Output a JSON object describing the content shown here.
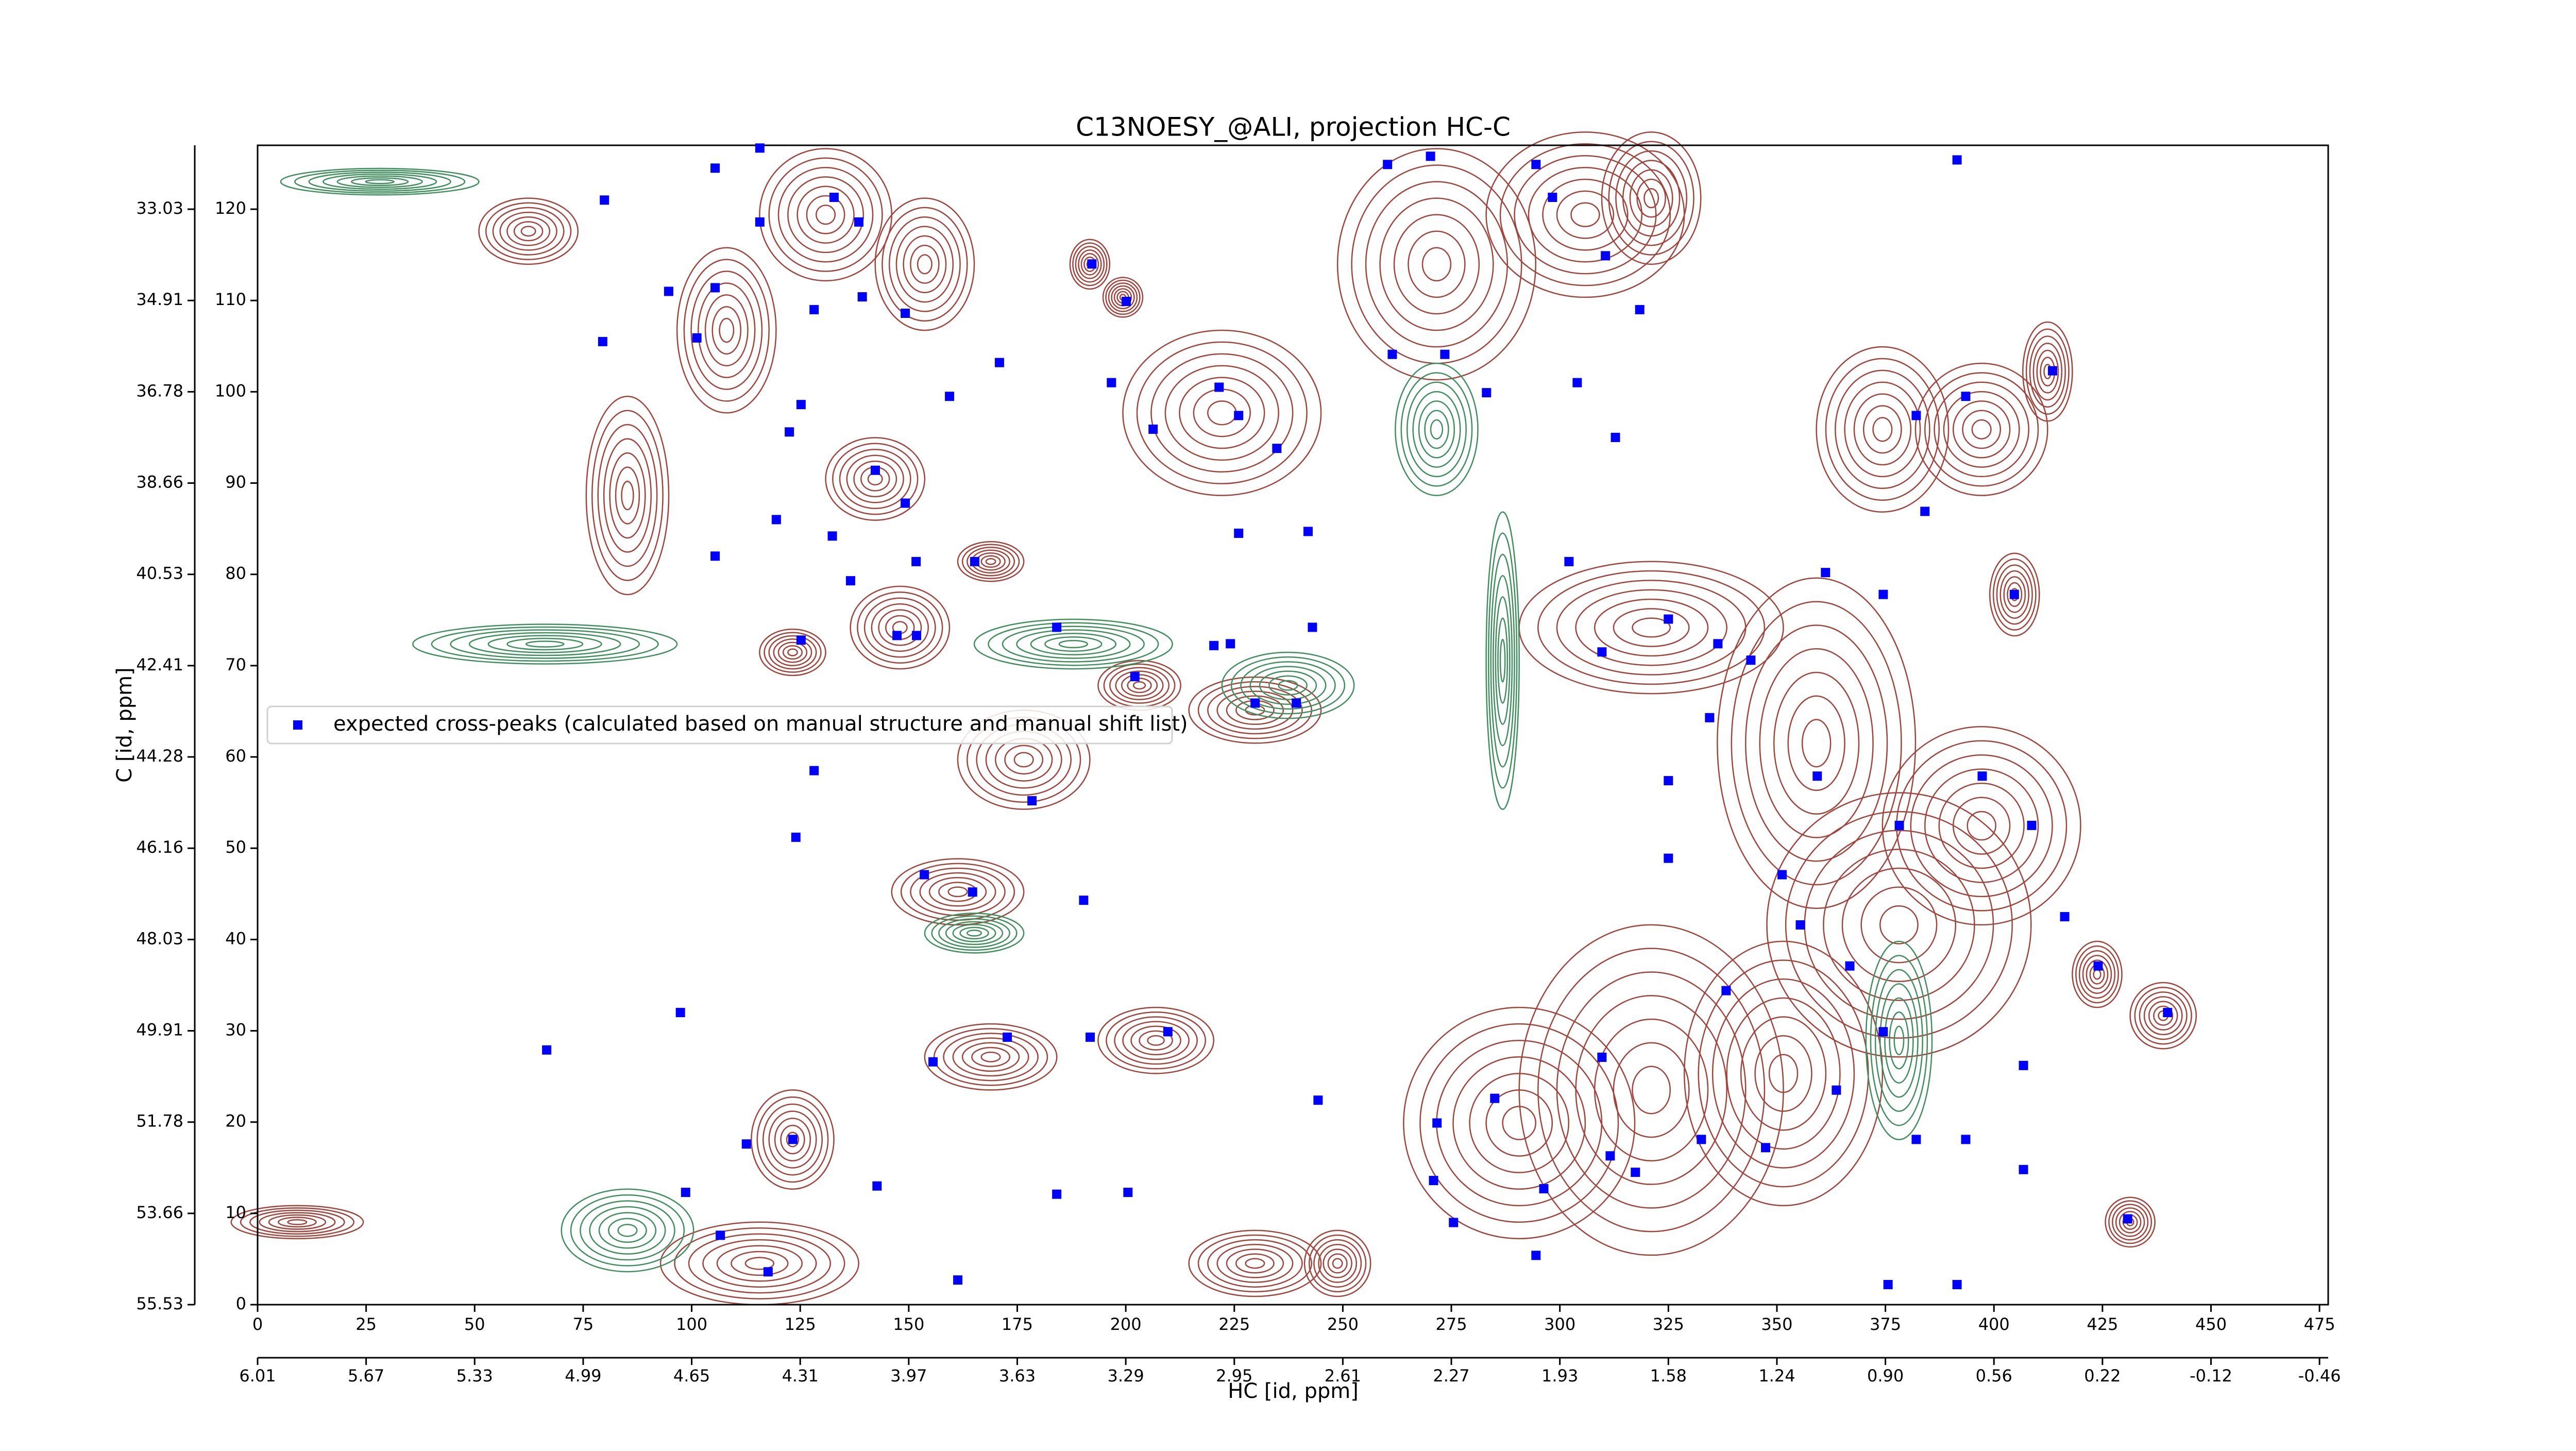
{
  "chart_data": {
    "type": "scatter",
    "title": "C13NOESY_@ALI, projection HC-C",
    "xlabel": "HC [id, ppm]",
    "ylabel": "C [id, ppm]",
    "xlim": [
      0,
      477
    ],
    "ylim": [
      0,
      127
    ],
    "xticks": [
      0,
      25,
      50,
      75,
      100,
      125,
      150,
      175,
      200,
      225,
      250,
      275,
      300,
      325,
      350,
      375,
      400,
      425,
      450,
      475
    ],
    "yticks": [
      0,
      10,
      20,
      30,
      40,
      50,
      60,
      70,
      80,
      90,
      100,
      110,
      120
    ],
    "x2ticks": [
      {
        "value": 0,
        "label": "6.01"
      },
      {
        "value": 25,
        "label": "5.67"
      },
      {
        "value": 50,
        "label": "5.33"
      },
      {
        "value": 75,
        "label": "4.99"
      },
      {
        "value": 100,
        "label": "4.65"
      },
      {
        "value": 125,
        "label": "4.31"
      },
      {
        "value": 150,
        "label": "3.97"
      },
      {
        "value": 175,
        "label": "3.63"
      },
      {
        "value": 200,
        "label": "3.29"
      },
      {
        "value": 225,
        "label": "2.95"
      },
      {
        "value": 250,
        "label": "2.61"
      },
      {
        "value": 275,
        "label": "2.27"
      },
      {
        "value": 300,
        "label": "1.93"
      },
      {
        "value": 325,
        "label": "1.58"
      },
      {
        "value": 350,
        "label": "1.24"
      },
      {
        "value": 375,
        "label": "0.90"
      },
      {
        "value": 400,
        "label": "0.56"
      },
      {
        "value": 425,
        "label": "0.22"
      },
      {
        "value": 450,
        "label": "-0.12"
      },
      {
        "value": 475,
        "label": "-0.46"
      }
    ],
    "y2ticks": [
      {
        "value": 0,
        "label": "55.53"
      },
      {
        "value": 10,
        "label": "53.66"
      },
      {
        "value": 20,
        "label": "51.78"
      },
      {
        "value": 30,
        "label": "49.91"
      },
      {
        "value": 40,
        "label": "48.03"
      },
      {
        "value": 50,
        "label": "46.16"
      },
      {
        "value": 60,
        "label": "44.28"
      },
      {
        "value": 70,
        "label": "42.41"
      },
      {
        "value": 80,
        "label": "40.53"
      },
      {
        "value": 90,
        "label": "38.66"
      },
      {
        "value": 100,
        "label": "36.78"
      },
      {
        "value": 110,
        "label": "34.91"
      },
      {
        "value": 120,
        "label": "33.03"
      }
    ],
    "legend": "center left",
    "series": [
      {
        "name": "expected cross-peaks (calculated based on manual structure and manual shift list)",
        "color": "#0000ff",
        "x": [
          79.9,
          115.7,
          105.4,
          115.7,
          132.8,
          138.5,
          94.7,
          105.4,
          101.2,
          128.2,
          139.3,
          149.2,
          192.2,
          200.1,
          170.9,
          125.2,
          122.5,
          119.5,
          142.3,
          149.2,
          159.4,
          196.7,
          206.3,
          221.5,
          226.0,
          234.8,
          226.0,
          242.0,
          132.4,
          136.6,
          151.7,
          165.2,
          125.2,
          147.3,
          151.8,
          184.1,
          220.3,
          224.1,
          243.0,
          202.1,
          229.8,
          239.3,
          124.0,
          128.2,
          153.6,
          164.7,
          178.4,
          190.3,
          155.6,
          172.7,
          191.8,
          209.7,
          123.3,
          112.6,
          142.7,
          106.6,
          117.6,
          161.3,
          184.1,
          200.5,
          260.3,
          270.2,
          294.5,
          298.3,
          310.5,
          318.4,
          261.4,
          273.5,
          283.1,
          304.0,
          312.8,
          302.1,
          309.7,
          325.0,
          336.4,
          361.2,
          374.5,
          382.1,
          393.5,
          413.5,
          391.5,
          384.1,
          404.7,
          359.3,
          378.2,
          397.3,
          408.7,
          416.3,
          424.0,
          440.0,
          406.8,
          382.1,
          393.5,
          406.8,
          430.8,
          375.6,
          391.5,
          325.0,
          338.3,
          355.4,
          366.8,
          374.5,
          309.7,
          311.6,
          317.4,
          332.6,
          285.0,
          271.7,
          275.5,
          294.5,
          296.3,
          244.3,
          270.9,
          363.7,
          347.4,
          351.2,
          325.0,
          334.5,
          344.0,
          98.6,
          66.6,
          97.4,
          79.5,
          105.4
        ],
        "y": [
          121.0,
          126.7,
          124.5,
          118.6,
          121.3,
          118.6,
          111.0,
          111.4,
          105.9,
          109.0,
          110.4,
          108.6,
          114.0,
          109.9,
          103.2,
          98.6,
          95.6,
          86.0,
          91.4,
          87.8,
          99.5,
          101.0,
          95.9,
          100.5,
          97.4,
          93.8,
          84.5,
          84.7,
          84.2,
          79.3,
          81.4,
          81.4,
          72.8,
          73.3,
          73.3,
          74.2,
          72.2,
          72.4,
          74.2,
          68.8,
          65.9,
          65.9,
          51.2,
          58.5,
          47.1,
          45.2,
          55.2,
          44.3,
          26.6,
          29.3,
          29.3,
          29.9,
          18.1,
          17.6,
          13.0,
          7.6,
          3.6,
          2.7,
          12.1,
          12.3,
          124.9,
          125.8,
          124.9,
          121.3,
          114.9,
          109.0,
          104.1,
          104.1,
          99.9,
          101.0,
          95.0,
          81.4,
          71.5,
          75.1,
          72.4,
          80.2,
          77.8,
          97.4,
          99.5,
          102.3,
          125.4,
          86.9,
          77.8,
          57.9,
          52.5,
          57.9,
          52.5,
          42.5,
          37.1,
          32.0,
          26.2,
          18.1,
          18.1,
          14.8,
          9.4,
          2.2,
          2.2,
          48.9,
          34.4,
          41.6,
          37.1,
          29.9,
          27.1,
          16.3,
          14.5,
          18.1,
          22.6,
          19.9,
          9.0,
          5.4,
          12.7,
          22.4,
          13.6,
          23.5,
          17.2,
          47.1,
          57.4,
          64.3,
          70.6,
          12.3,
          27.9,
          32.0,
          105.5,
          82.0
        ]
      }
    ]
  }
}
